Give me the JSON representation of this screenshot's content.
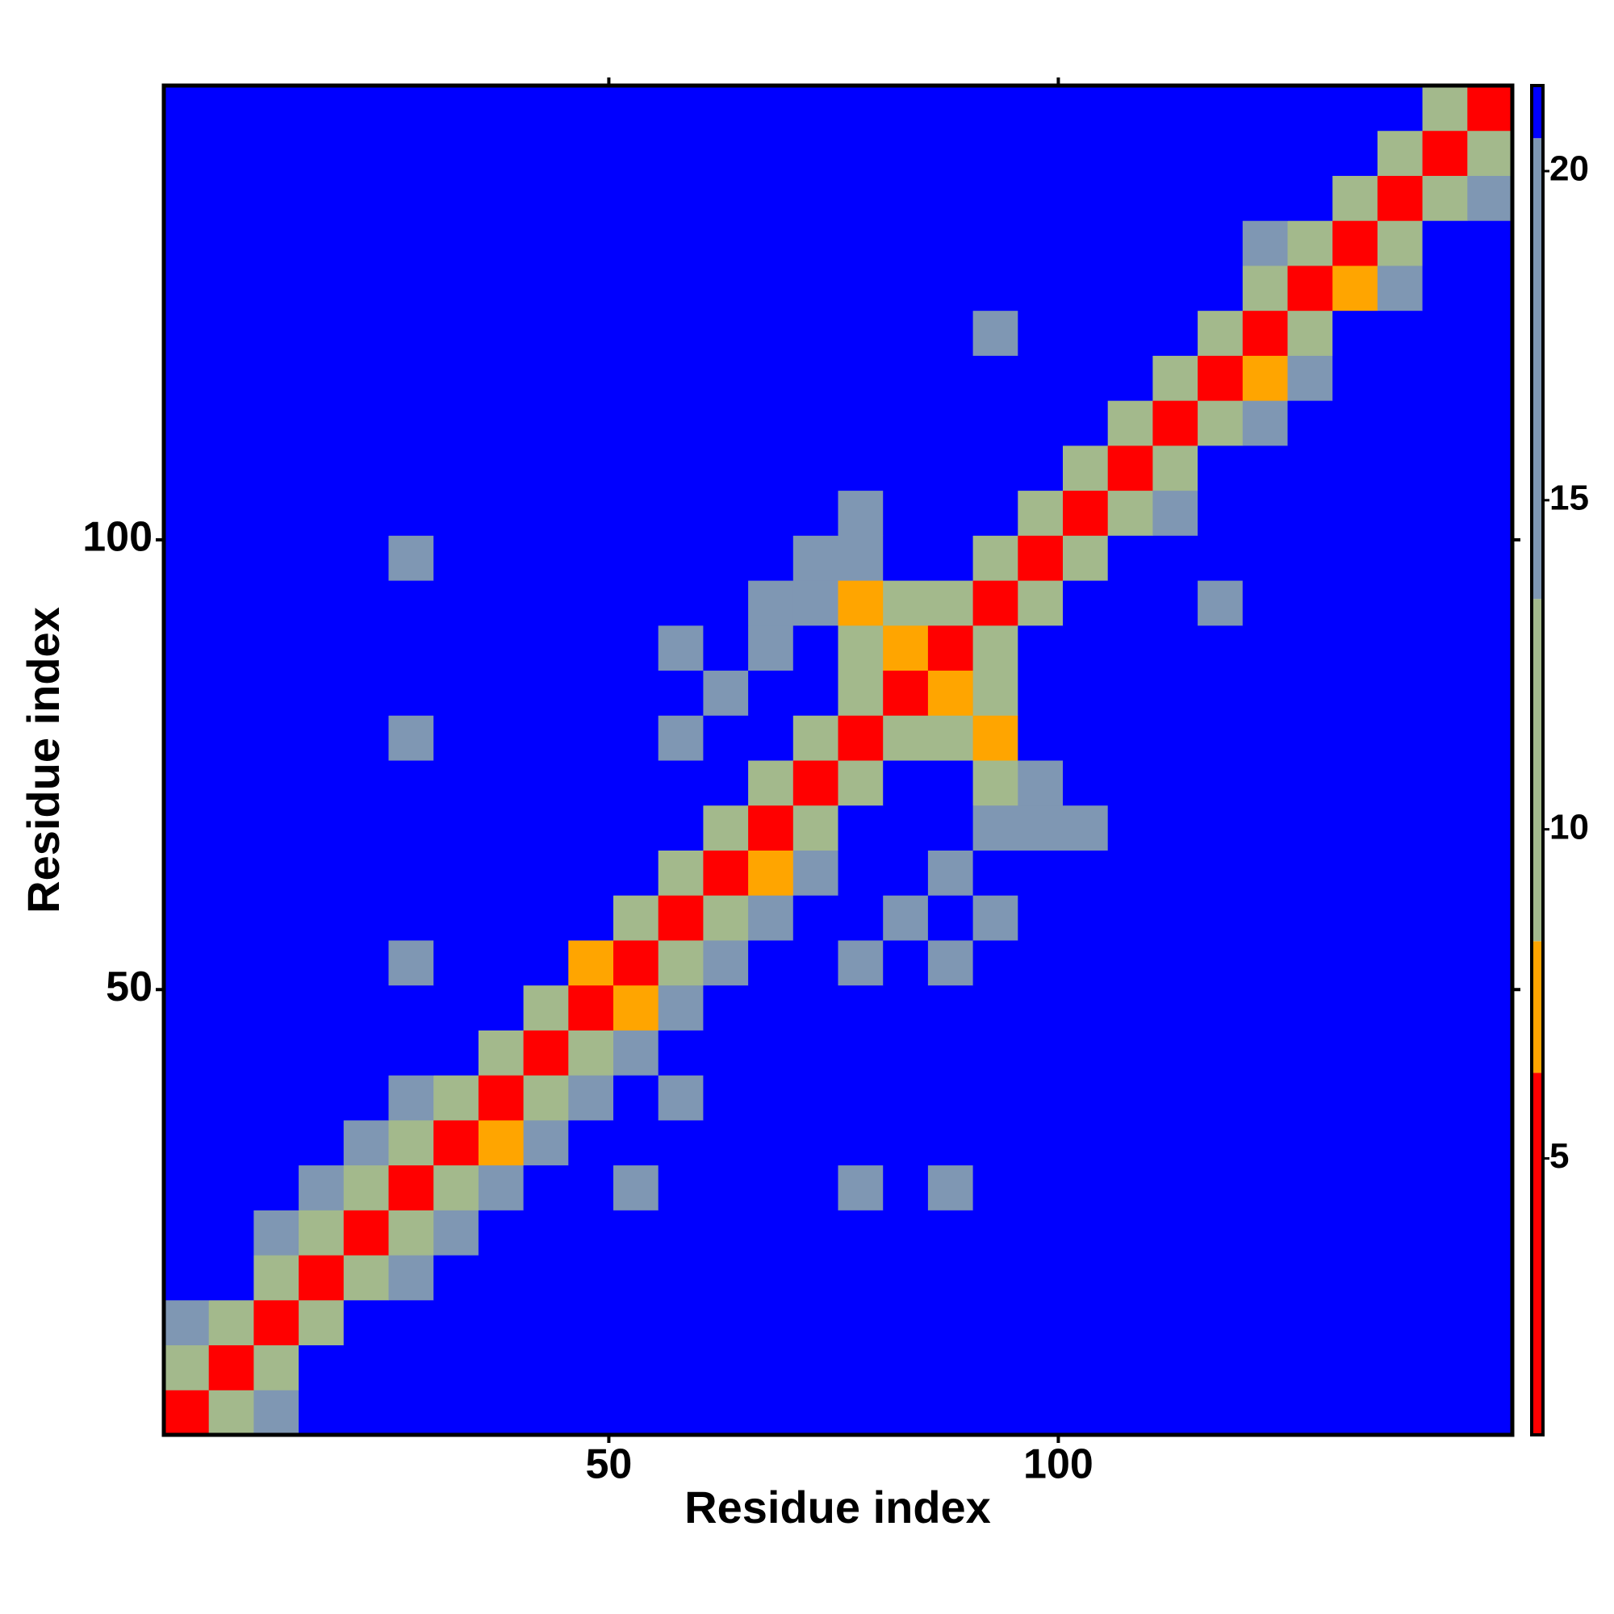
{
  "chart_data": {
    "type": "heatmap",
    "x_label": "Residue index",
    "y_label": "Residue index",
    "x": [
      3,
      8,
      13,
      18,
      23,
      28,
      33,
      38,
      43,
      48,
      53,
      58,
      63,
      68,
      73,
      78,
      83,
      88,
      93,
      98,
      103,
      108,
      113,
      118,
      123,
      128,
      133,
      138,
      143,
      148
    ],
    "y": [
      3,
      8,
      13,
      18,
      23,
      28,
      33,
      38,
      43,
      48,
      53,
      58,
      63,
      68,
      73,
      78,
      83,
      88,
      93,
      98,
      103,
      108,
      113,
      118,
      123,
      128,
      133,
      138,
      143,
      148
    ],
    "z": [
      [
        3,
        10,
        15,
        21,
        21,
        21,
        21,
        21,
        21,
        21,
        21,
        21,
        21,
        21,
        21,
        21,
        21,
        21,
        21,
        21,
        21,
        21,
        21,
        21,
        21,
        21,
        21,
        21,
        21,
        21
      ],
      [
        10,
        3,
        10,
        21,
        21,
        21,
        21,
        21,
        21,
        21,
        21,
        21,
        21,
        21,
        21,
        21,
        21,
        21,
        21,
        21,
        21,
        21,
        21,
        21,
        21,
        21,
        21,
        21,
        21,
        21
      ],
      [
        15,
        10,
        3,
        10,
        21,
        21,
        21,
        21,
        21,
        21,
        21,
        21,
        21,
        21,
        21,
        21,
        21,
        21,
        21,
        21,
        21,
        21,
        21,
        21,
        21,
        21,
        21,
        21,
        21,
        21
      ],
      [
        21,
        21,
        10,
        3,
        10,
        15,
        21,
        21,
        21,
        21,
        21,
        21,
        21,
        21,
        21,
        21,
        21,
        21,
        21,
        21,
        21,
        21,
        21,
        21,
        21,
        21,
        21,
        21,
        21,
        21
      ],
      [
        21,
        21,
        15,
        10,
        3,
        9,
        15,
        21,
        21,
        21,
        21,
        21,
        21,
        21,
        21,
        21,
        21,
        21,
        21,
        21,
        21,
        21,
        21,
        21,
        21,
        21,
        21,
        21,
        21,
        21
      ],
      [
        21,
        21,
        21,
        15,
        10,
        3,
        10,
        15,
        21,
        21,
        17,
        21,
        21,
        21,
        21,
        17,
        21,
        18,
        21,
        21,
        21,
        21,
        21,
        21,
        21,
        21,
        21,
        21,
        21,
        21
      ],
      [
        21,
        21,
        21,
        21,
        15,
        9,
        3,
        8,
        15,
        21,
        21,
        21,
        21,
        21,
        21,
        21,
        21,
        21,
        21,
        21,
        21,
        21,
        21,
        21,
        21,
        21,
        21,
        21,
        21,
        21
      ],
      [
        21,
        21,
        21,
        21,
        21,
        15,
        10,
        3,
        10,
        15,
        21,
        18,
        21,
        21,
        21,
        21,
        21,
        21,
        21,
        21,
        21,
        21,
        21,
        21,
        21,
        21,
        21,
        21,
        21,
        21
      ],
      [
        21,
        21,
        21,
        21,
        21,
        21,
        21,
        10,
        3,
        10,
        15,
        21,
        21,
        21,
        21,
        21,
        21,
        21,
        21,
        21,
        21,
        21,
        21,
        21,
        21,
        21,
        21,
        21,
        21,
        21
      ],
      [
        21,
        21,
        21,
        21,
        21,
        21,
        21,
        21,
        10,
        3,
        8,
        15,
        21,
        21,
        21,
        21,
        21,
        21,
        21,
        21,
        21,
        21,
        21,
        21,
        21,
        21,
        21,
        21,
        21,
        21
      ],
      [
        21,
        21,
        21,
        21,
        21,
        17,
        21,
        21,
        21,
        8,
        3,
        10,
        15,
        21,
        21,
        16,
        21,
        15,
        21,
        21,
        21,
        21,
        21,
        21,
        21,
        21,
        21,
        21,
        21,
        21
      ],
      [
        21,
        21,
        21,
        21,
        21,
        21,
        21,
        21,
        21,
        21,
        10,
        3,
        10,
        15,
        21,
        21,
        16,
        21,
        15,
        21,
        21,
        21,
        21,
        21,
        21,
        21,
        21,
        21,
        21,
        21
      ],
      [
        21,
        21,
        21,
        21,
        21,
        21,
        21,
        21,
        21,
        21,
        21,
        10,
        3,
        8,
        15,
        21,
        21,
        16,
        21,
        21,
        21,
        21,
        21,
        21,
        21,
        21,
        21,
        21,
        21,
        21
      ],
      [
        21,
        21,
        21,
        21,
        21,
        21,
        21,
        21,
        21,
        21,
        21,
        21,
        10,
        3,
        10,
        21,
        21,
        21,
        14,
        15,
        17,
        21,
        21,
        21,
        21,
        21,
        21,
        21,
        21,
        21
      ],
      [
        21,
        21,
        21,
        21,
        21,
        21,
        21,
        21,
        21,
        21,
        21,
        21,
        21,
        10,
        3,
        10,
        21,
        21,
        13,
        15,
        21,
        21,
        21,
        21,
        21,
        21,
        21,
        21,
        21,
        21
      ],
      [
        21,
        21,
        21,
        21,
        21,
        17,
        21,
        21,
        21,
        21,
        21,
        16,
        21,
        21,
        10,
        3,
        10,
        12,
        7,
        21,
        21,
        21,
        21,
        21,
        21,
        21,
        21,
        21,
        21,
        21
      ],
      [
        21,
        21,
        21,
        21,
        21,
        21,
        21,
        21,
        21,
        21,
        21,
        21,
        15,
        21,
        21,
        10,
        3,
        7,
        12,
        21,
        21,
        21,
        21,
        21,
        21,
        21,
        21,
        21,
        21,
        21
      ],
      [
        21,
        21,
        21,
        21,
        21,
        21,
        21,
        21,
        21,
        21,
        21,
        16,
        21,
        15,
        21,
        12,
        7,
        3,
        10,
        21,
        21,
        21,
        21,
        21,
        21,
        21,
        21,
        21,
        21,
        21
      ],
      [
        21,
        21,
        21,
        21,
        21,
        21,
        21,
        21,
        21,
        21,
        21,
        21,
        21,
        16,
        14,
        7,
        12,
        10,
        3,
        10,
        21,
        21,
        21,
        18,
        21,
        21,
        21,
        21,
        21,
        21
      ],
      [
        21,
        21,
        21,
        21,
        21,
        18,
        21,
        21,
        21,
        21,
        21,
        21,
        21,
        21,
        14,
        14,
        21,
        21,
        10,
        3,
        10,
        21,
        21,
        21,
        21,
        21,
        21,
        21,
        21,
        21
      ],
      [
        21,
        21,
        21,
        21,
        21,
        21,
        21,
        21,
        21,
        21,
        21,
        21,
        21,
        21,
        21,
        17,
        21,
        21,
        21,
        10,
        3,
        10,
        15,
        21,
        21,
        21,
        21,
        21,
        21,
        21
      ],
      [
        21,
        21,
        21,
        21,
        21,
        21,
        21,
        21,
        21,
        21,
        21,
        21,
        21,
        21,
        21,
        21,
        21,
        21,
        21,
        21,
        10,
        3,
        10,
        21,
        21,
        21,
        21,
        21,
        21,
        21
      ],
      [
        21,
        21,
        21,
        21,
        21,
        21,
        21,
        21,
        21,
        21,
        21,
        21,
        21,
        21,
        21,
        21,
        21,
        21,
        21,
        21,
        21,
        10,
        3,
        10,
        15,
        21,
        21,
        21,
        21,
        21
      ],
      [
        21,
        21,
        21,
        21,
        21,
        21,
        21,
        21,
        21,
        21,
        21,
        21,
        21,
        21,
        21,
        21,
        21,
        21,
        21,
        21,
        21,
        21,
        10,
        3,
        8,
        15,
        21,
        21,
        21,
        21
      ],
      [
        21,
        21,
        21,
        21,
        21,
        21,
        21,
        21,
        21,
        21,
        21,
        21,
        21,
        21,
        21,
        21,
        21,
        21,
        18,
        21,
        21,
        21,
        21,
        10,
        3,
        10,
        21,
        21,
        21,
        21
      ],
      [
        21,
        21,
        21,
        21,
        21,
        21,
        21,
        21,
        21,
        21,
        21,
        21,
        21,
        21,
        21,
        21,
        21,
        21,
        21,
        21,
        21,
        21,
        21,
        21,
        10,
        3,
        8,
        15,
        21,
        21
      ],
      [
        21,
        21,
        21,
        21,
        21,
        21,
        21,
        21,
        21,
        21,
        21,
        21,
        21,
        21,
        21,
        21,
        21,
        21,
        21,
        21,
        21,
        21,
        21,
        21,
        15,
        10,
        3,
        10,
        21,
        21
      ],
      [
        21,
        21,
        21,
        21,
        21,
        21,
        21,
        21,
        21,
        21,
        21,
        21,
        21,
        21,
        21,
        21,
        21,
        21,
        21,
        21,
        21,
        21,
        21,
        21,
        21,
        21,
        10,
        3,
        10,
        15
      ],
      [
        21,
        21,
        21,
        21,
        21,
        21,
        21,
        21,
        21,
        21,
        21,
        21,
        21,
        21,
        21,
        21,
        21,
        21,
        21,
        21,
        21,
        21,
        21,
        21,
        21,
        21,
        21,
        10,
        3,
        10
      ],
      [
        21,
        21,
        21,
        21,
        21,
        21,
        21,
        21,
        21,
        21,
        21,
        21,
        21,
        21,
        21,
        21,
        21,
        21,
        21,
        21,
        21,
        21,
        21,
        21,
        21,
        21,
        21,
        21,
        10,
        3
      ]
    ],
    "xlim": [
      0.5,
      150.5
    ],
    "ylim": [
      0.5,
      150.5
    ],
    "xticks": [
      50,
      100
    ],
    "yticks": [
      50,
      100
    ],
    "zlim": [
      0.8,
      21.3
    ],
    "zticks": [
      5,
      10,
      15,
      20
    ],
    "colorscale": [
      {
        "max": 6.3,
        "color": "#ff0000"
      },
      {
        "max": 8.3,
        "color": "#ffa500"
      },
      {
        "max": 13.5,
        "color": "#a3b98c"
      },
      {
        "max": 20.5,
        "color": "#7f97b3"
      },
      {
        "max": 21.3,
        "color": "#0000ff"
      }
    ]
  }
}
